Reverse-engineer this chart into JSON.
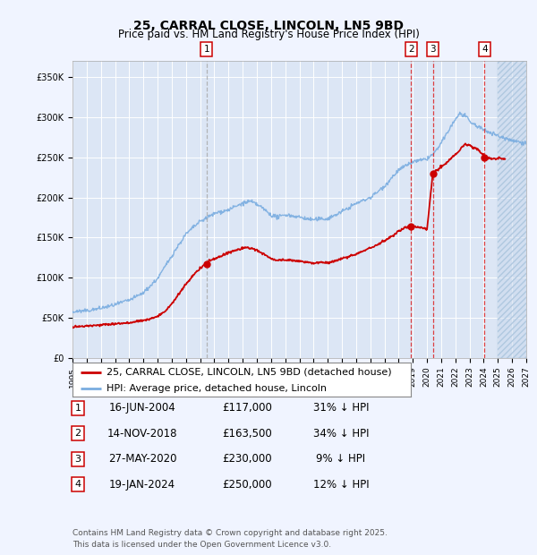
{
  "title": "25, CARRAL CLOSE, LINCOLN, LN5 9BD",
  "subtitle": "Price paid vs. HM Land Registry's House Price Index (HPI)",
  "ylim": [
    0,
    370000
  ],
  "yticks": [
    0,
    50000,
    100000,
    150000,
    200000,
    250000,
    300000,
    350000
  ],
  "ytick_labels": [
    "£0",
    "£50K",
    "£100K",
    "£150K",
    "£200K",
    "£250K",
    "£300K",
    "£350K"
  ],
  "xlim_start": 1995.0,
  "xlim_end": 2027.0,
  "background_color": "#f0f4ff",
  "plot_bg_color": "#dce6f5",
  "grid_color": "#ffffff",
  "red_line_color": "#cc0000",
  "blue_line_color": "#7aade0",
  "transaction_dates": [
    2004.458,
    2018.872,
    2020.411,
    2024.055
  ],
  "transaction_prices": [
    117000,
    163500,
    230000,
    250000
  ],
  "transaction_labels": [
    "1",
    "2",
    "3",
    "4"
  ],
  "vline_colors": [
    "#aaaaaa",
    "#dd2222",
    "#dd2222",
    "#dd2222"
  ],
  "vline_styles": [
    "--",
    "--",
    "--",
    "--"
  ],
  "legend_items": [
    "25, CARRAL CLOSE, LINCOLN, LN5 9BD (detached house)",
    "HPI: Average price, detached house, Lincoln"
  ],
  "table_rows": [
    [
      "1",
      "16-JUN-2004",
      "£117,000",
      "31% ↓ HPI"
    ],
    [
      "2",
      "14-NOV-2018",
      "£163,500",
      "34% ↓ HPI"
    ],
    [
      "3",
      "27-MAY-2020",
      "£230,000",
      "9% ↓ HPI"
    ],
    [
      "4",
      "19-JAN-2024",
      "£250,000",
      "12% ↓ HPI"
    ]
  ],
  "footnote": "Contains HM Land Registry data © Crown copyright and database right 2025.\nThis data is licensed under the Open Government Licence v3.0.",
  "title_fontsize": 10,
  "subtitle_fontsize": 8.5,
  "tick_fontsize": 7,
  "legend_fontsize": 8,
  "table_fontsize": 8.5,
  "footnote_fontsize": 6.5
}
